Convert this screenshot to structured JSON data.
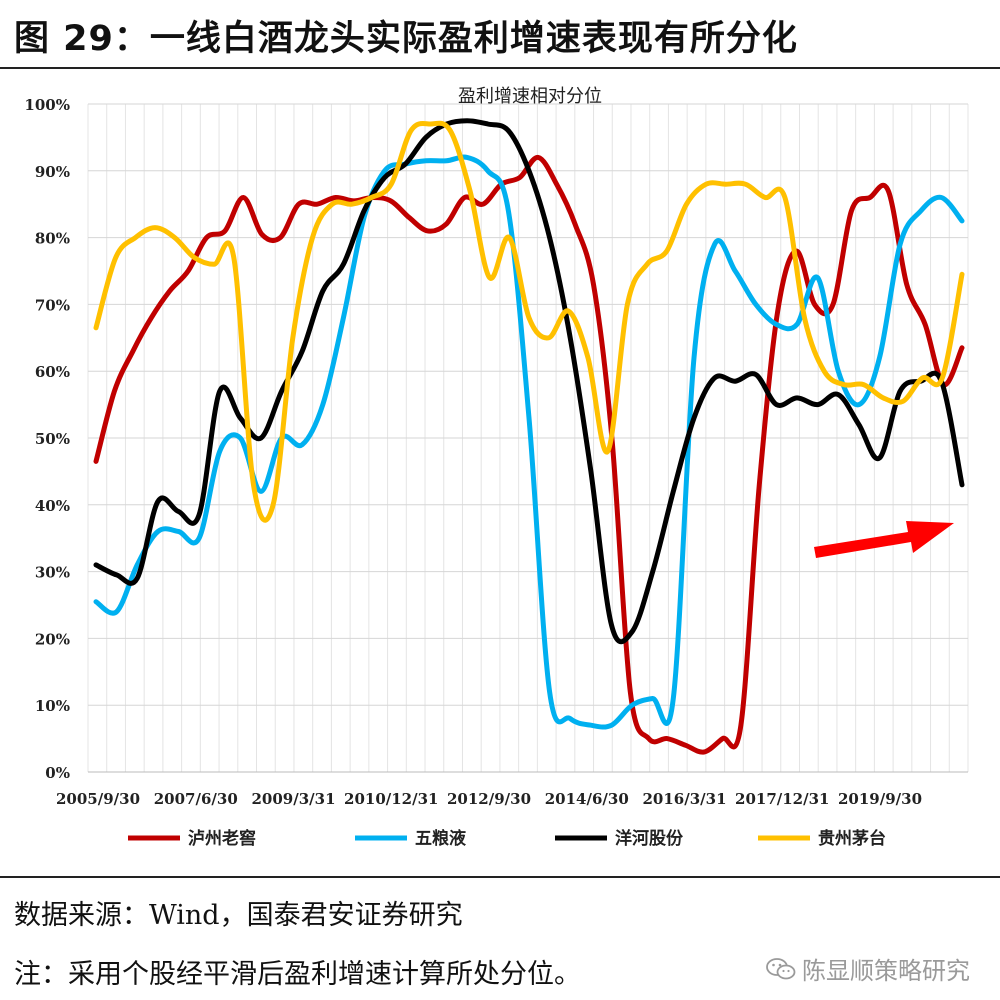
{
  "figure_title": "图 29：一线白酒龙头实际盈利增速表现有所分化",
  "source": "数据来源：Wind，国泰君安证券研究",
  "note": "注：采用个股经平滑后盈利增速计算所处分位。",
  "watermark": "陈显顺策略研究",
  "chart_data": {
    "type": "line",
    "title": "盈利增速相对分位",
    "x_tick_labels": [
      "2005/9/30",
      "2007/6/30",
      "2009/3/31",
      "2010/12/31",
      "2012/9/30",
      "2014/6/30",
      "2016/3/31",
      "2017/12/31",
      "2019/9/30"
    ],
    "y_tick_labels": [
      "0%",
      "10%",
      "20%",
      "30%",
      "40%",
      "50%",
      "60%",
      "70%",
      "80%",
      "90%",
      "100%"
    ],
    "ylim": [
      0,
      100
    ],
    "grid": true,
    "legend_position": "bottom",
    "annotation": "red arrow pointing right toward latest values",
    "series": [
      {
        "name": "泸州老窖",
        "color": "#c00000",
        "values": [
          46.5,
          57,
          63,
          68,
          72,
          75,
          80,
          81,
          86,
          80.5,
          80,
          85,
          85,
          86,
          85.5,
          86,
          85.5,
          83,
          81,
          82,
          86,
          85,
          88,
          89,
          92,
          88,
          82,
          73,
          50,
          12,
          5,
          5,
          4,
          3,
          5,
          7,
          43,
          69,
          78,
          70,
          70,
          84,
          86,
          87,
          73,
          67,
          58,
          63.5
        ]
      },
      {
        "name": "五粮液",
        "color": "#00b0f0",
        "values": [
          25.5,
          24,
          31,
          36,
          36,
          35,
          48,
          50,
          42,
          50,
          49,
          55,
          68,
          83,
          90,
          91,
          91.5,
          91.5,
          92,
          90,
          84,
          53,
          12,
          8,
          7,
          7,
          10,
          11,
          11,
          62,
          79,
          75,
          70,
          67,
          67,
          74,
          60,
          55,
          62,
          79,
          84,
          86,
          82.5
        ]
      },
      {
        "name": "洋河股份",
        "color": "#000000",
        "values": [
          31,
          29.5,
          29,
          40.5,
          39,
          38.5,
          57,
          53,
          50,
          57,
          63,
          72,
          76,
          84,
          89,
          91,
          95,
          97,
          97.5,
          97,
          96,
          90,
          80,
          65,
          45,
          22,
          21,
          30,
          42,
          53,
          59,
          58.5,
          59.5,
          55,
          56,
          55,
          56.5,
          52,
          47,
          57,
          58.5,
          58.5,
          43
        ]
      },
      {
        "name": "贵州茅台",
        "color": "#ffc000",
        "values": [
          66.5,
          77,
          80,
          81.5,
          80,
          77,
          76,
          77,
          43,
          40,
          65,
          80,
          85,
          85,
          86,
          88,
          96,
          97,
          96,
          87,
          74,
          80,
          68,
          65,
          69,
          62,
          48,
          70,
          76,
          78,
          85,
          88,
          88,
          88,
          86,
          86,
          68,
          60,
          58,
          58,
          56,
          55.5,
          59,
          59,
          74.5
        ]
      }
    ]
  }
}
